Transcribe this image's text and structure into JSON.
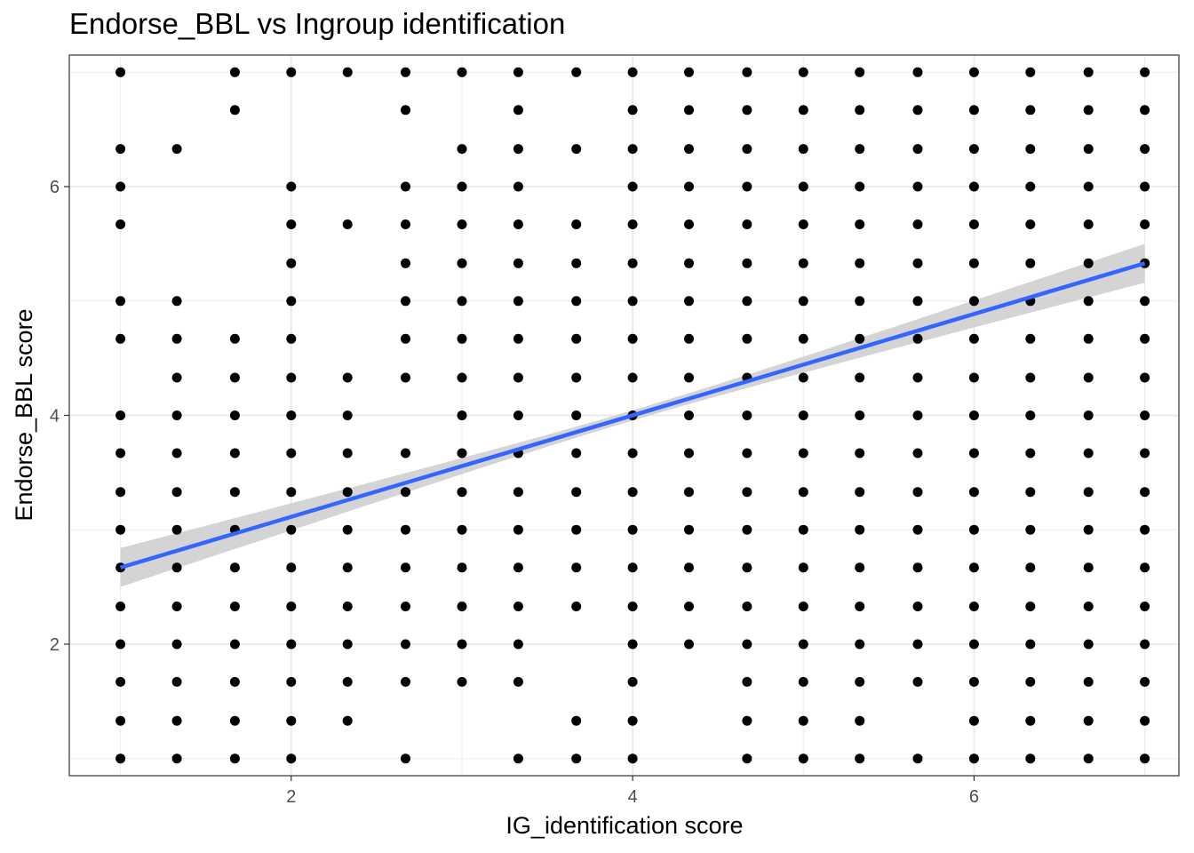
{
  "chart_data": {
    "type": "scatter",
    "title": "Endorse_BBL vs Ingroup identification",
    "xlabel": "IG_identification score",
    "ylabel": "Endorse_BBL score",
    "xlim": [
      0.7,
      7.2
    ],
    "ylim": [
      0.85,
      7.15
    ],
    "xticks": [
      2,
      4,
      6
    ],
    "yticks": [
      2,
      4,
      6
    ],
    "grid": true,
    "point_color": "#000000",
    "fit": {
      "method": "linear",
      "x": [
        1,
        7
      ],
      "y": [
        2.67,
        5.33
      ],
      "color": "#3366ff",
      "ci_color": "#cccccc",
      "ci_halfwidth_at_ends": 0.17,
      "ci_halfwidth_at_center": 0.045
    },
    "point_rows": [
      {
        "x": 1.0,
        "y": [
          7.0,
          6.33,
          6.0,
          5.67,
          5.0,
          4.67,
          4.0,
          3.67,
          3.33,
          3.0,
          2.67,
          2.33,
          2.0,
          1.67,
          1.33,
          1.0
        ]
      },
      {
        "x": 1.33,
        "y": [
          6.33,
          5.0,
          4.67,
          4.33,
          4.0,
          3.67,
          3.33,
          3.0,
          2.67,
          2.33,
          2.0,
          1.67,
          1.33,
          1.0
        ]
      },
      {
        "x": 1.67,
        "y": [
          7.0,
          6.67,
          4.67,
          4.33,
          4.0,
          3.67,
          3.33,
          3.0,
          2.67,
          2.33,
          2.0,
          1.67,
          1.33,
          1.0
        ]
      },
      {
        "x": 2.0,
        "y": [
          7.0,
          6.0,
          5.67,
          5.33,
          5.0,
          4.67,
          4.33,
          4.0,
          3.67,
          3.33,
          3.0,
          2.67,
          2.33,
          2.0,
          1.67,
          1.33,
          1.0
        ]
      },
      {
        "x": 2.33,
        "y": [
          7.0,
          5.67,
          4.33,
          4.0,
          3.67,
          3.33,
          3.0,
          2.67,
          2.33,
          2.0,
          1.67,
          1.33
        ]
      },
      {
        "x": 2.67,
        "y": [
          7.0,
          6.67,
          6.0,
          5.67,
          5.33,
          5.0,
          4.67,
          4.33,
          3.67,
          3.33,
          3.0,
          2.67,
          2.33,
          2.0,
          1.67,
          1.0
        ]
      },
      {
        "x": 3.0,
        "y": [
          7.0,
          6.33,
          6.0,
          5.67,
          5.33,
          5.0,
          4.67,
          4.33,
          4.0,
          3.67,
          3.33,
          3.0,
          2.67,
          2.33,
          2.0,
          1.67
        ]
      },
      {
        "x": 3.33,
        "y": [
          7.0,
          6.67,
          6.33,
          6.0,
          5.67,
          5.33,
          5.0,
          4.67,
          4.33,
          4.0,
          3.67,
          3.33,
          3.0,
          2.67,
          2.33,
          2.0,
          1.67,
          1.0
        ]
      },
      {
        "x": 3.67,
        "y": [
          7.0,
          6.33,
          5.67,
          5.33,
          5.0,
          4.67,
          4.33,
          4.0,
          3.67,
          3.33,
          3.0,
          2.67,
          2.33,
          1.33,
          1.0
        ]
      },
      {
        "x": 4.0,
        "y": [
          7.0,
          6.67,
          6.33,
          6.0,
          5.67,
          5.33,
          5.0,
          4.67,
          4.33,
          4.0,
          3.67,
          3.33,
          3.0,
          2.67,
          2.33,
          2.0,
          1.67,
          1.33,
          1.0
        ]
      },
      {
        "x": 4.33,
        "y": [
          7.0,
          6.67,
          6.33,
          6.0,
          5.67,
          5.33,
          5.0,
          4.67,
          4.33,
          4.0,
          3.67,
          3.33,
          3.0,
          2.67,
          2.33,
          2.0
        ]
      },
      {
        "x": 4.67,
        "y": [
          7.0,
          6.67,
          6.33,
          6.0,
          5.67,
          5.33,
          5.0,
          4.67,
          4.33,
          4.0,
          3.67,
          3.33,
          3.0,
          2.67,
          2.33,
          2.0,
          1.67,
          1.33,
          1.0
        ]
      },
      {
        "x": 5.0,
        "y": [
          7.0,
          6.67,
          6.33,
          6.0,
          5.67,
          5.33,
          5.0,
          4.67,
          4.33,
          4.0,
          3.67,
          3.33,
          3.0,
          2.67,
          2.33,
          2.0,
          1.67,
          1.33,
          1.0
        ]
      },
      {
        "x": 5.33,
        "y": [
          7.0,
          6.67,
          6.33,
          6.0,
          5.67,
          5.33,
          5.0,
          4.67,
          4.33,
          4.0,
          3.67,
          3.33,
          3.0,
          2.67,
          2.33,
          2.0,
          1.67,
          1.33,
          1.0
        ]
      },
      {
        "x": 5.67,
        "y": [
          7.0,
          6.67,
          6.33,
          6.0,
          5.67,
          5.33,
          5.0,
          4.67,
          4.33,
          4.0,
          3.67,
          3.33,
          3.0,
          2.67,
          2.33,
          2.0,
          1.67,
          1.0
        ]
      },
      {
        "x": 6.0,
        "y": [
          7.0,
          6.67,
          6.33,
          6.0,
          5.67,
          5.33,
          5.0,
          4.67,
          4.33,
          4.0,
          3.67,
          3.33,
          3.0,
          2.67,
          2.33,
          2.0,
          1.67,
          1.33,
          1.0
        ]
      },
      {
        "x": 6.33,
        "y": [
          7.0,
          6.67,
          6.33,
          6.0,
          5.67,
          5.33,
          5.0,
          4.67,
          4.33,
          4.0,
          3.67,
          3.33,
          3.0,
          2.67,
          2.33,
          2.0,
          1.67,
          1.33,
          1.0
        ]
      },
      {
        "x": 6.67,
        "y": [
          7.0,
          6.67,
          6.33,
          6.0,
          5.67,
          5.33,
          5.0,
          4.67,
          4.33,
          4.0,
          3.67,
          3.33,
          3.0,
          2.67,
          2.33,
          2.0,
          1.67,
          1.33,
          1.0
        ]
      },
      {
        "x": 7.0,
        "y": [
          7.0,
          6.67,
          6.33,
          6.0,
          5.67,
          5.33,
          5.0,
          4.67,
          4.33,
          4.0,
          3.67,
          3.33,
          3.0,
          2.67,
          2.33,
          2.0,
          1.67,
          1.33,
          1.0
        ]
      }
    ]
  }
}
